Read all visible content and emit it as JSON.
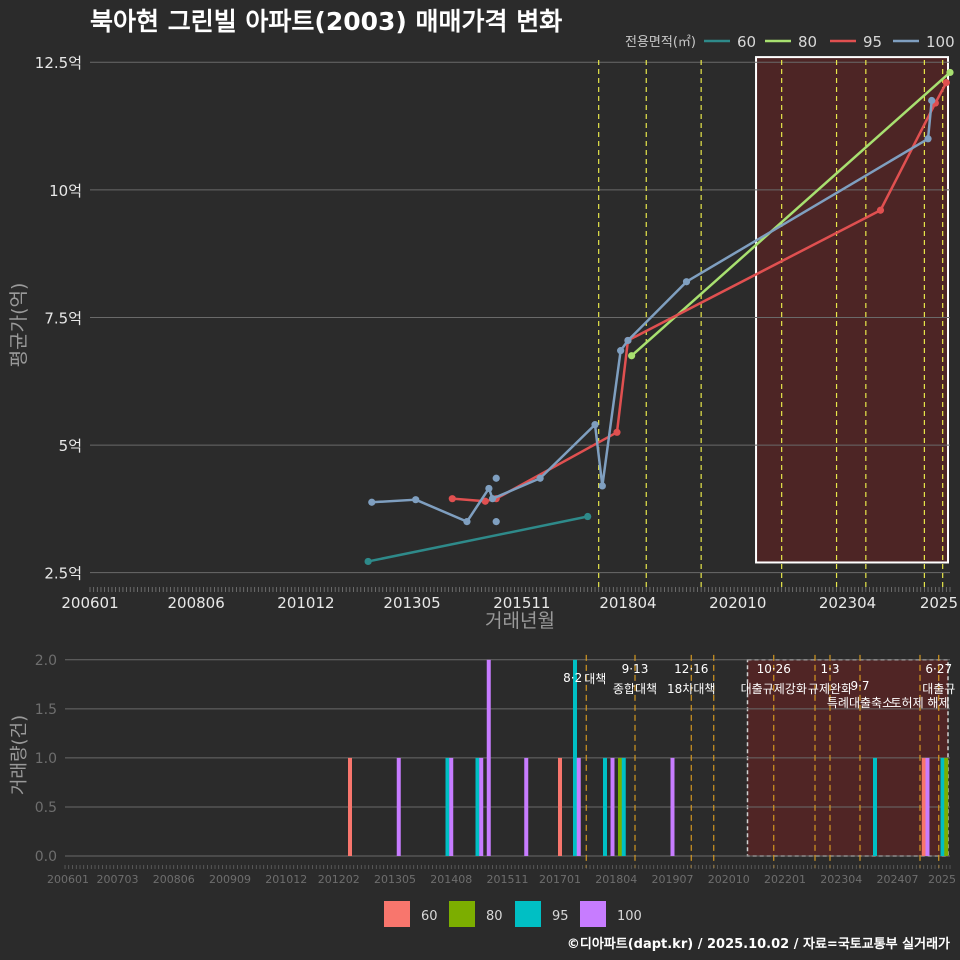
{
  "header": {
    "title": "북아현 그린빌 아파트(2003) 매매가격 변화"
  },
  "footer": {
    "credit": "©디아파트(dapt.kr) / 2025.10.02 / 자료=국토교통부 실거래가"
  },
  "colors": {
    "background": "#2b2b2b",
    "grid": "#6a6a6a",
    "policy_line": "#e8e84a",
    "policy_line_bottom": "#e0a020",
    "highlight_fill": "#5a2424",
    "top_series": {
      "60": "#2e8a8a",
      "80": "#a8e070",
      "95": "#e05050",
      "100": "#7f9fc0"
    },
    "bottom_series": {
      "60": "#f8766d",
      "80": "#7cae00",
      "95": "#00bfc4",
      "100": "#c77cff"
    }
  },
  "chart_data": [
    {
      "type": "line",
      "title": "북아현 그린빌 아파트(2003) 매매가격 변화",
      "xlabel": "거래년월",
      "ylabel": "평균가(억)",
      "x_range": [
        "2006-01",
        "2025-08"
      ],
      "ylim": [
        2.2,
        12.7
      ],
      "y_ticks": [
        2.5,
        5,
        7.5,
        10,
        12.5
      ],
      "y_tick_labels": [
        "2.5억",
        "5억",
        "7.5억",
        "10억",
        "12.5억"
      ],
      "x_ticks": [
        "2006-01",
        "2008-06",
        "2010-12",
        "2013-05",
        "2015-11",
        "2018-04",
        "2020-10",
        "2023-04",
        "2025-09"
      ],
      "x_tick_labels": [
        "200601",
        "200806",
        "201012",
        "201305",
        "201511",
        "201804",
        "202010",
        "202304",
        "2025"
      ],
      "legend_title": "전용면적(㎡)",
      "legend_position": "top-right",
      "series": [
        {
          "name": "60",
          "color_key": "60",
          "points": [
            [
              "2012-05",
              2.72
            ],
            [
              "2017-05",
              3.6
            ]
          ]
        },
        {
          "name": "80",
          "color_key": "80",
          "points": [
            [
              "2018-05",
              6.75
            ],
            [
              "2025-08",
              12.3
            ]
          ]
        },
        {
          "name": "95",
          "color_key": "95",
          "points": [
            [
              "2014-04",
              3.95
            ],
            [
              "2015-01",
              3.9
            ],
            [
              "2015-04",
              3.95
            ],
            [
              "2018-01",
              5.25
            ],
            [
              "2018-04",
              7.05
            ],
            [
              "2024-01",
              9.6
            ],
            [
              "2025-04",
              11.7
            ],
            [
              "2025-07",
              12.1
            ]
          ]
        },
        {
          "name": "100",
          "color_key": "100",
          "points": [
            [
              "2012-06",
              3.88
            ],
            [
              "2013-06",
              3.93
            ],
            [
              "2014-08",
              3.5
            ],
            [
              "2015-02",
              4.15
            ],
            [
              "2015-03",
              3.95
            ],
            [
              "2016-04",
              4.35
            ],
            [
              "2017-07",
              5.4
            ],
            [
              "2017-09",
              4.2
            ],
            [
              "2018-02",
              6.85
            ],
            [
              "2018-04",
              7.05
            ],
            [
              "2019-08",
              8.2
            ],
            [
              "2025-02",
              11.0
            ],
            [
              "2025-03",
              11.75
            ]
          ]
        },
        {
          "name": "100-single",
          "color_key": "100",
          "points_only": true,
          "points": [
            [
              "2015-04",
              3.5
            ],
            [
              "2015-04",
              4.35
            ]
          ]
        }
      ],
      "policy_dates": [
        "2017-08",
        "2018-09",
        "2019-12",
        "2021-10",
        "2023-01",
        "2023-09",
        "2025-01",
        "2025-06"
      ],
      "highlight_range": [
        "2021-03",
        "2025-09"
      ]
    },
    {
      "type": "bar",
      "xlabel": "",
      "ylabel": "거래량(건)",
      "ylim": [
        0,
        2.1
      ],
      "y_ticks": [
        0,
        0.5,
        1,
        1.5,
        2
      ],
      "y_tick_labels": [
        "0.0",
        "0.5",
        "1.0",
        "1.5",
        "2.0"
      ],
      "x_ticks": [
        "2006-01",
        "2007-03",
        "2008-06",
        "2009-09",
        "2010-12",
        "2012-02",
        "2013-05",
        "2014-08",
        "2015-11",
        "2017-01",
        "2018-04",
        "2019-07",
        "2020-10",
        "2022-01",
        "2023-04",
        "2024-07",
        "2025-09"
      ],
      "x_tick_labels": [
        "200601",
        "200703",
        "200806",
        "200909",
        "201012",
        "201202",
        "201305",
        "201408",
        "201511",
        "201701",
        "201804",
        "201907",
        "202010",
        "202201",
        "202304",
        "202407",
        "2025"
      ],
      "legend_position": "bottom",
      "legend": [
        {
          "name": "60",
          "color_key": "60"
        },
        {
          "name": "80",
          "color_key": "80"
        },
        {
          "name": "95",
          "color_key": "95"
        },
        {
          "name": "100",
          "color_key": "100"
        }
      ],
      "bars": [
        {
          "x": "2012-05",
          "series": "60",
          "value": 1
        },
        {
          "x": "2013-06",
          "series": "100",
          "value": 1
        },
        {
          "x": "2014-07",
          "series": "95",
          "value": 1
        },
        {
          "x": "2014-08",
          "series": "100",
          "value": 1
        },
        {
          "x": "2015-03",
          "series": "95",
          "value": 1
        },
        {
          "x": "2015-04",
          "series": "100",
          "value": 1
        },
        {
          "x": "2015-06",
          "series": "100",
          "value": 2
        },
        {
          "x": "2016-04",
          "series": "100",
          "value": 1
        },
        {
          "x": "2017-01",
          "series": "60",
          "value": 1
        },
        {
          "x": "2017-05",
          "series": "95",
          "value": 2
        },
        {
          "x": "2017-06",
          "series": "100",
          "value": 1
        },
        {
          "x": "2018-01",
          "series": "95",
          "value": 1
        },
        {
          "x": "2018-03",
          "series": "100",
          "value": 1
        },
        {
          "x": "2018-05",
          "series": "80",
          "value": 1
        },
        {
          "x": "2018-06",
          "series": "95",
          "value": 1
        },
        {
          "x": "2019-07",
          "series": "100",
          "value": 1
        },
        {
          "x": "2024-01",
          "series": "95",
          "value": 1
        },
        {
          "x": "2025-02",
          "series": "60",
          "value": 1
        },
        {
          "x": "2025-03",
          "series": "100",
          "value": 1
        },
        {
          "x": "2025-07",
          "series": "95",
          "value": 1
        },
        {
          "x": "2025-08",
          "series": "80",
          "value": 1
        }
      ],
      "policy_lines": [
        "2017-08",
        "2018-09",
        "2019-12",
        "2020-06",
        "2021-10",
        "2022-09",
        "2023-01",
        "2023-09",
        "2025-01",
        "2025-06"
      ],
      "annotations": [
        {
          "date": "2017-08",
          "date_label": "8·2",
          "label": "대책",
          "row": "upper"
        },
        {
          "date": "2018-09",
          "date_label": "9·13",
          "label": "종합대책",
          "row": "lower"
        },
        {
          "date": "2019-12",
          "date_label": "12·16",
          "label": "18차대책",
          "row": "lower"
        },
        {
          "date": "2021-10",
          "date_label": "10·26",
          "label": "대출규제강화",
          "row": "lower"
        },
        {
          "date": "2023-01",
          "date_label": "1·3",
          "label": "규제완화",
          "row": "lower"
        },
        {
          "date": "2023-09",
          "date_label": "9·7",
          "label": "특례대출축소",
          "row": "bottom"
        },
        {
          "date": "2025-01",
          "date_label": "",
          "label": "토허제 해제",
          "row": "bottom"
        },
        {
          "date": "2025-06",
          "date_label": "6·27",
          "label": "대출규",
          "row": "lower"
        }
      ],
      "highlight_range": [
        "2021-03",
        "2025-09"
      ]
    }
  ]
}
